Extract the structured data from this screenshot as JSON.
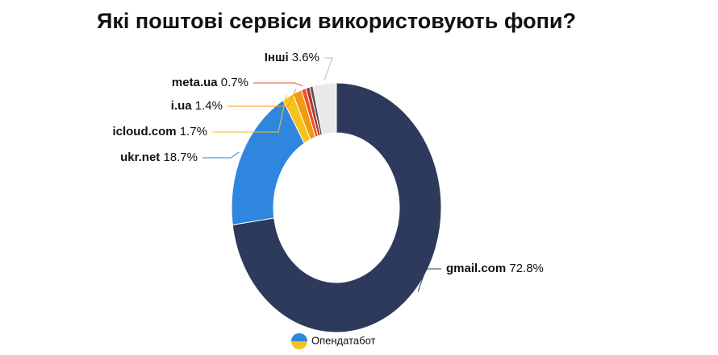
{
  "chart_data": {
    "type": "donut",
    "title": "Які поштові сервіси використовують фопи?",
    "categories": [
      "gmail.com",
      "ukr.net",
      "icloud.com",
      "i.ua",
      "meta.ua",
      null,
      null,
      "Інші"
    ],
    "values": [
      72.8,
      18.7,
      1.7,
      1.4,
      0.7,
      0.6,
      0.5,
      3.6
    ],
    "value_labels": [
      "72.8%",
      "18.7%",
      "1.7%",
      "1.4%",
      "0.7%",
      null,
      null,
      "3.6%"
    ],
    "colors": [
      "#2e3a5c",
      "#2f86de",
      "#f7c21b",
      "#f39a12",
      "#e8542c",
      "#b8322a",
      "#555555",
      "#e9e9e9"
    ]
  },
  "footer": {
    "brand": "Опендатабот"
  }
}
